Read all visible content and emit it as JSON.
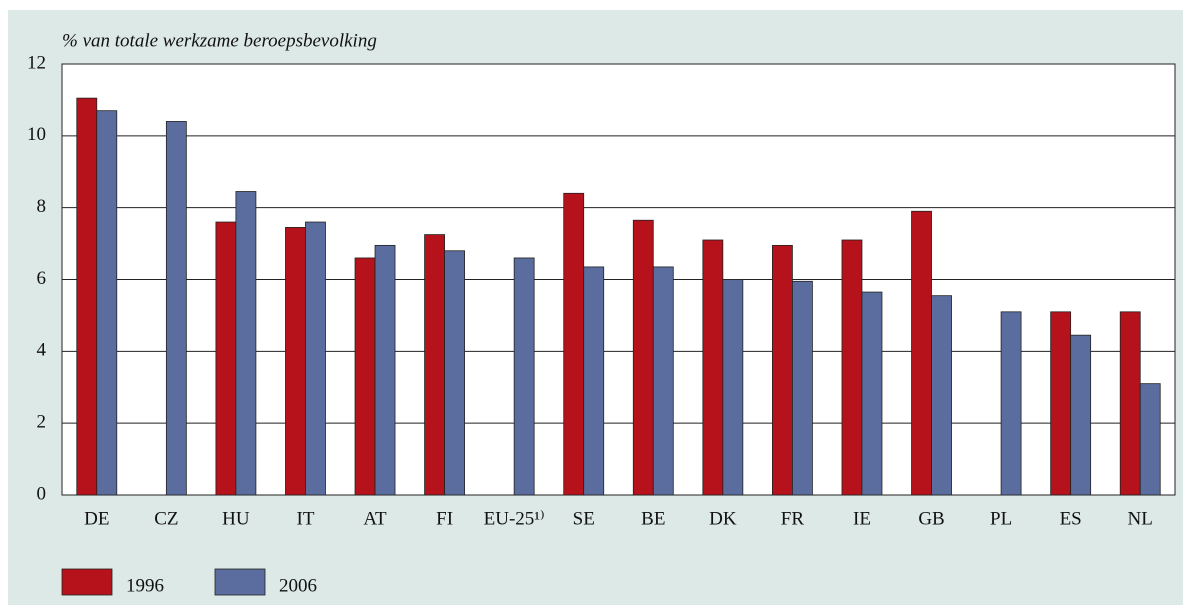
{
  "chart_data": {
    "type": "bar",
    "y_label": "% van totale werkzame beroepsbevolking",
    "categories": [
      "DE",
      "CZ",
      "HU",
      "IT",
      "AT",
      "FI",
      "EU-25¹⁾",
      "SE",
      "BE",
      "DK",
      "FR",
      "IE",
      "GB",
      "PL",
      "ES",
      "NL"
    ],
    "series": [
      {
        "name": "1996",
        "color": "#b5121b",
        "values": [
          11.05,
          null,
          7.6,
          7.45,
          6.6,
          7.25,
          null,
          8.4,
          7.65,
          7.1,
          6.95,
          7.1,
          7.9,
          null,
          5.1,
          5.1
        ]
      },
      {
        "name": "2006",
        "color": "#5a6d9e",
        "values": [
          10.7,
          10.4,
          8.45,
          7.6,
          6.95,
          6.8,
          6.6,
          6.35,
          6.35,
          6.0,
          5.95,
          5.65,
          5.55,
          5.1,
          4.45,
          3.1
        ]
      }
    ],
    "ylim": [
      0,
      12
    ],
    "yticks": [
      0,
      2,
      4,
      6,
      8,
      10,
      12
    ],
    "grid": true
  }
}
